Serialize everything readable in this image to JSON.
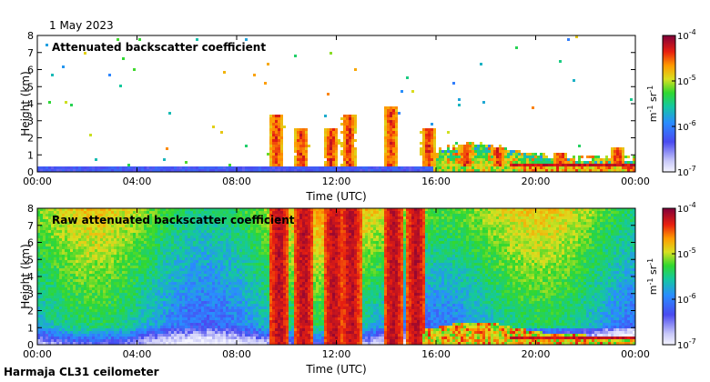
{
  "date_label": "1 May 2023",
  "footer_label": "Harmaja CL31 ceilometer",
  "chart_data": [
    {
      "type": "heatmap",
      "title": "Attenuated backscatter coefficient",
      "xlabel": "Time (UTC)",
      "ylabel": "Height (km)",
      "x_ticks": [
        "00:00",
        "04:00",
        "08:00",
        "12:00",
        "16:00",
        "20:00",
        "00:00"
      ],
      "xlim_hours": [
        0,
        24
      ],
      "y_ticks": [
        0,
        1,
        2,
        3,
        4,
        5,
        6,
        7,
        8
      ],
      "ylim": [
        0,
        8
      ],
      "colorbar": {
        "label_prefix": "m",
        "label_sup1": "-1",
        "label_mid": " sr",
        "label_sup2": "-1",
        "scale": "log",
        "ticks": [
          {
            "base": "10",
            "exp": "-4",
            "value": 0.0001
          },
          {
            "base": "10",
            "exp": "-5",
            "value": 1e-05
          },
          {
            "base": "10",
            "exp": "-6",
            "value": 1e-06
          },
          {
            "base": "10",
            "exp": "-7",
            "value": 1e-07
          }
        ]
      },
      "features": {
        "surface_layer_top_km": 0.4,
        "plumes": [
          {
            "t": 9.6,
            "h": 1.5,
            "top": 3.3
          },
          {
            "t": 10.6,
            "h": 1.2,
            "top": 2.6
          },
          {
            "t": 11.8,
            "h": 1.4,
            "top": 2.5
          },
          {
            "t": 12.5,
            "h": 2.8,
            "top": 3.3
          },
          {
            "t": 14.2,
            "h": 3.7,
            "top": 3.8
          },
          {
            "t": 15.7,
            "h": 2.4,
            "top": 2.5
          },
          {
            "t": 17.2,
            "h": 1.2,
            "top": 1.6
          },
          {
            "t": 18.5,
            "h": 1.2,
            "top": 1.5
          },
          {
            "t": 21.0,
            "h": 0.8,
            "top": 1.1
          },
          {
            "t": 23.3,
            "h": 1.0,
            "top": 1.5
          }
        ]
      }
    },
    {
      "type": "heatmap",
      "title": "Raw attenuated backscatter coefficient",
      "xlabel": "Time (UTC)",
      "ylabel": "Height (km)",
      "x_ticks": [
        "00:00",
        "04:00",
        "08:00",
        "12:00",
        "16:00",
        "20:00",
        "00:00"
      ],
      "xlim_hours": [
        0,
        24
      ],
      "y_ticks": [
        0,
        1,
        2,
        3,
        4,
        5,
        6,
        7,
        8
      ],
      "ylim": [
        0,
        8
      ],
      "colorbar": {
        "label_prefix": "m",
        "label_sup1": "-1",
        "label_mid": " sr",
        "label_sup2": "-1",
        "scale": "log",
        "ticks": [
          {
            "base": "10",
            "exp": "-4",
            "value": 0.0001
          },
          {
            "base": "10",
            "exp": "-5",
            "value": 1e-05
          },
          {
            "base": "10",
            "exp": "-6",
            "value": 1e-06
          },
          {
            "base": "10",
            "exp": "-7",
            "value": 1e-07
          }
        ]
      }
    }
  ]
}
